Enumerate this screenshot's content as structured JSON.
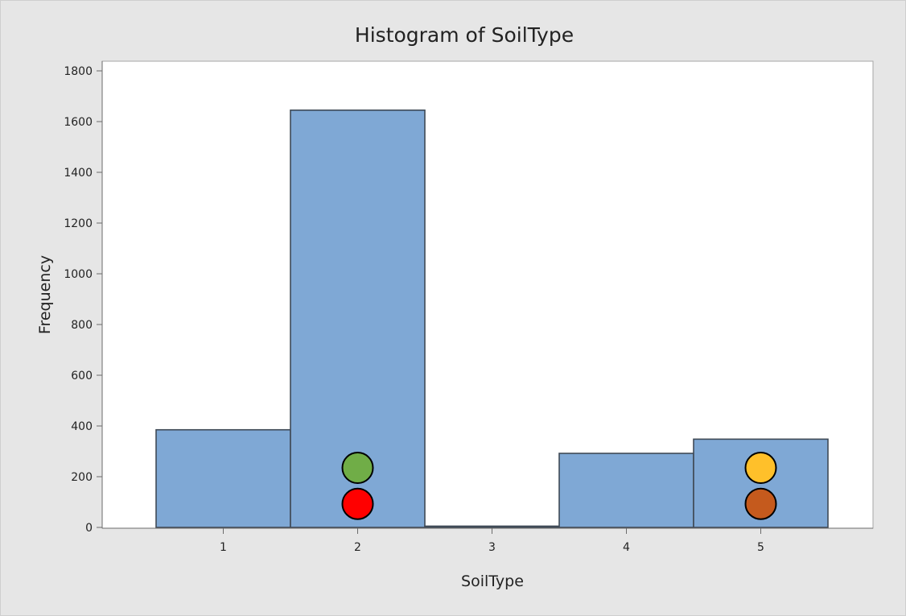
{
  "chart_data": {
    "type": "bar",
    "title": "Histogram of SoilType",
    "xlabel": "SoilType",
    "ylabel": "Frequency",
    "categories": [
      "1",
      "2",
      "3",
      "4",
      "5"
    ],
    "values": [
      385,
      1645,
      5,
      292,
      348
    ],
    "ylim": [
      0,
      1800
    ],
    "yticks": [
      0,
      200,
      400,
      600,
      800,
      1000,
      1200,
      1400,
      1600,
      1800
    ],
    "grid": false,
    "markers": [
      {
        "category": "2",
        "y": 235,
        "color": "#70ad47"
      },
      {
        "category": "2",
        "y": 93,
        "color": "#ff0000"
      },
      {
        "category": "5",
        "y": 235,
        "color": "#ffc02a"
      },
      {
        "category": "5",
        "y": 93,
        "color": "#c55a1d"
      }
    ],
    "colors": {
      "bar": "#7fa8d5",
      "bar_edge": "#3f4a56",
      "frame": "#e6e6e6"
    }
  }
}
